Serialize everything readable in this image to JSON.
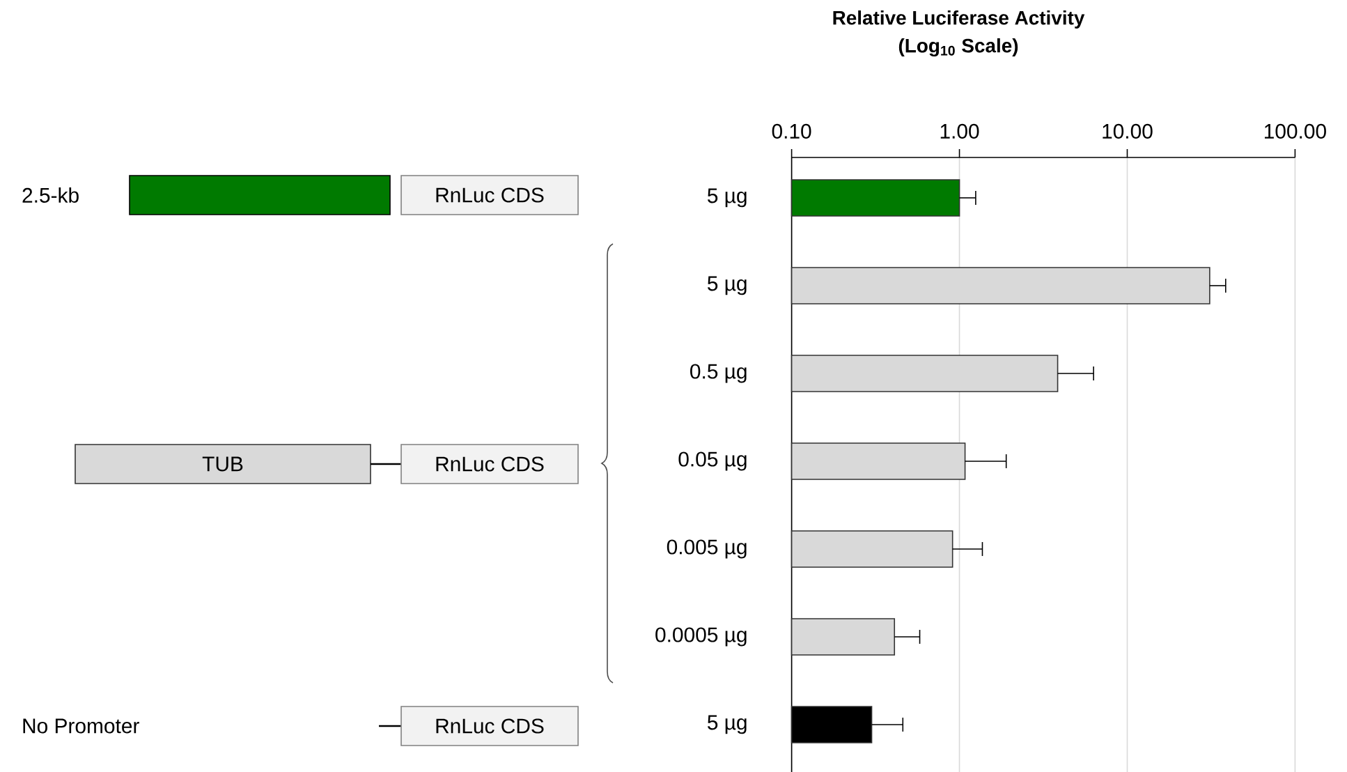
{
  "chart_data": {
    "type": "bar",
    "orientation": "horizontal",
    "title": "**Relative Luciferase Activity**",
    "subtitle": "**(Log$_{10}$ Scale)**",
    "categories": [
      "5 µg",
      "5 µg",
      "0.5 µg",
      "0.05 µg",
      "0.005 µg",
      "0.0005 µg",
      "5 µg"
    ],
    "values": [
      1.0,
      31,
      3.85,
      1.08,
      0.91,
      0.41,
      0.3
    ],
    "errors": [
      [
        1.0,
        1.25
      ],
      [
        31,
        38.6
      ],
      [
        3.85,
        6.3
      ],
      [
        1.08,
        1.9
      ],
      [
        0.91,
        1.37
      ],
      [
        0.41,
        0.58
      ],
      [
        0.3,
        0.46
      ]
    ],
    "colors": [
      "#007a00",
      "#d9d9d9",
      "#d9d9d9",
      "#d9d9d9",
      "#d9d9d9",
      "#d9d9d9",
      "#000000"
    ],
    "log": "x",
    "xlim": [
      0.1,
      100
    ],
    "xticks": [
      {
        "value": 0.1,
        "label": "0.10"
      },
      {
        "value": 1,
        "label": "1.00"
      },
      {
        "value": 10,
        "label": "10.00"
      },
      {
        "value": 100,
        "label": "100.00"
      }
    ],
    "grid": "x",
    "annotations": [
      "2.5-kb",
      "RnLuc CDS",
      "TUB",
      "RnLuc CDS",
      "No Promoter",
      "RnLuc CDS"
    ]
  }
}
